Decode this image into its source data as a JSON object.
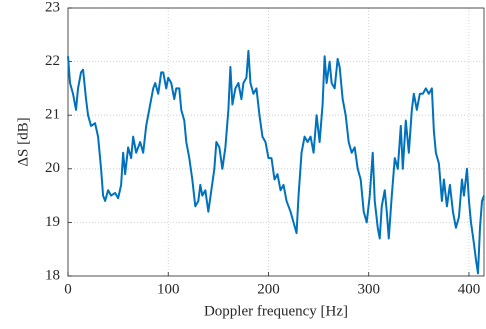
{
  "chart_data": {
    "type": "line",
    "x_label": "Doppler frequency [Hz]",
    "y_label": "ΔS [dB]",
    "xlim": [
      0,
      415
    ],
    "ylim": [
      18,
      23
    ],
    "xticks": [
      0,
      100,
      200,
      300,
      400
    ],
    "yticks": [
      18,
      19,
      20,
      21,
      22,
      23
    ],
    "grid": true,
    "series": [
      {
        "color": "#0072BD",
        "x": [
          0,
          2,
          5,
          8,
          10,
          13,
          15,
          18,
          20,
          23,
          27,
          30,
          33,
          35,
          37,
          40,
          43,
          47,
          50,
          53,
          55,
          57,
          60,
          63,
          65,
          68,
          72,
          75,
          78,
          82,
          85,
          87,
          90,
          93,
          95,
          98,
          100,
          103,
          106,
          108,
          111,
          113,
          116,
          118,
          121,
          124,
          127,
          130,
          132,
          134,
          137,
          140,
          143,
          146,
          148,
          151,
          154,
          157,
          160,
          162,
          164,
          167,
          170,
          173,
          175,
          178,
          180,
          182,
          185,
          188,
          191,
          194,
          197,
          200,
          203,
          206,
          209,
          212,
          215,
          218,
          222,
          225,
          228,
          230,
          233,
          236,
          239,
          242,
          245,
          248,
          251,
          254,
          256,
          258,
          261,
          263,
          266,
          269,
          271,
          274,
          277,
          280,
          283,
          286,
          289,
          292,
          295,
          298,
          301,
          304,
          306,
          309,
          311,
          313,
          316,
          318,
          320,
          323,
          326,
          329,
          332,
          334,
          337,
          340,
          343,
          345,
          348,
          351,
          354,
          357,
          360,
          363,
          365,
          367,
          370,
          373,
          375,
          378,
          381,
          384,
          387,
          390,
          393,
          395,
          398,
          400,
          402,
          405,
          407,
          409,
          411,
          413,
          415
        ],
        "values": [
          22.1,
          21.6,
          21.4,
          21.1,
          21.5,
          21.8,
          21.85,
          21.3,
          21.0,
          20.8,
          20.85,
          20.6,
          20.0,
          19.5,
          19.4,
          19.6,
          19.5,
          19.55,
          19.45,
          19.7,
          20.3,
          19.9,
          20.4,
          20.2,
          20.6,
          20.3,
          20.5,
          20.3,
          20.8,
          21.2,
          21.5,
          21.6,
          21.4,
          21.8,
          21.8,
          21.5,
          21.7,
          21.6,
          21.3,
          21.5,
          21.5,
          21.1,
          20.9,
          20.5,
          20.2,
          19.8,
          19.3,
          19.4,
          19.7,
          19.5,
          19.6,
          19.2,
          19.6,
          20.0,
          20.5,
          20.4,
          20.0,
          20.4,
          21.1,
          21.9,
          21.2,
          21.5,
          21.6,
          21.3,
          21.6,
          21.7,
          22.2,
          21.6,
          21.4,
          21.5,
          21.0,
          20.6,
          20.5,
          20.2,
          20.2,
          19.8,
          19.9,
          19.6,
          19.7,
          19.4,
          19.2,
          19.0,
          18.8,
          19.5,
          20.3,
          20.6,
          20.5,
          20.6,
          20.3,
          21.0,
          20.5,
          21.2,
          22.1,
          21.6,
          22.0,
          21.6,
          21.5,
          22.05,
          21.9,
          21.3,
          21.0,
          20.5,
          20.3,
          20.4,
          20.0,
          19.8,
          19.2,
          19.0,
          19.5,
          20.3,
          19.4,
          18.9,
          18.7,
          19.3,
          19.6,
          19.2,
          18.7,
          19.5,
          20.2,
          20.0,
          20.8,
          20.0,
          20.9,
          20.3,
          21.1,
          21.4,
          21.1,
          21.4,
          21.4,
          21.5,
          21.4,
          21.5,
          20.7,
          20.3,
          20.1,
          19.4,
          19.8,
          19.3,
          19.7,
          19.2,
          18.9,
          19.1,
          19.8,
          19.5,
          20.0,
          19.4,
          19.0,
          18.6,
          18.3,
          18.05,
          18.9,
          19.4,
          19.5
        ]
      }
    ]
  }
}
